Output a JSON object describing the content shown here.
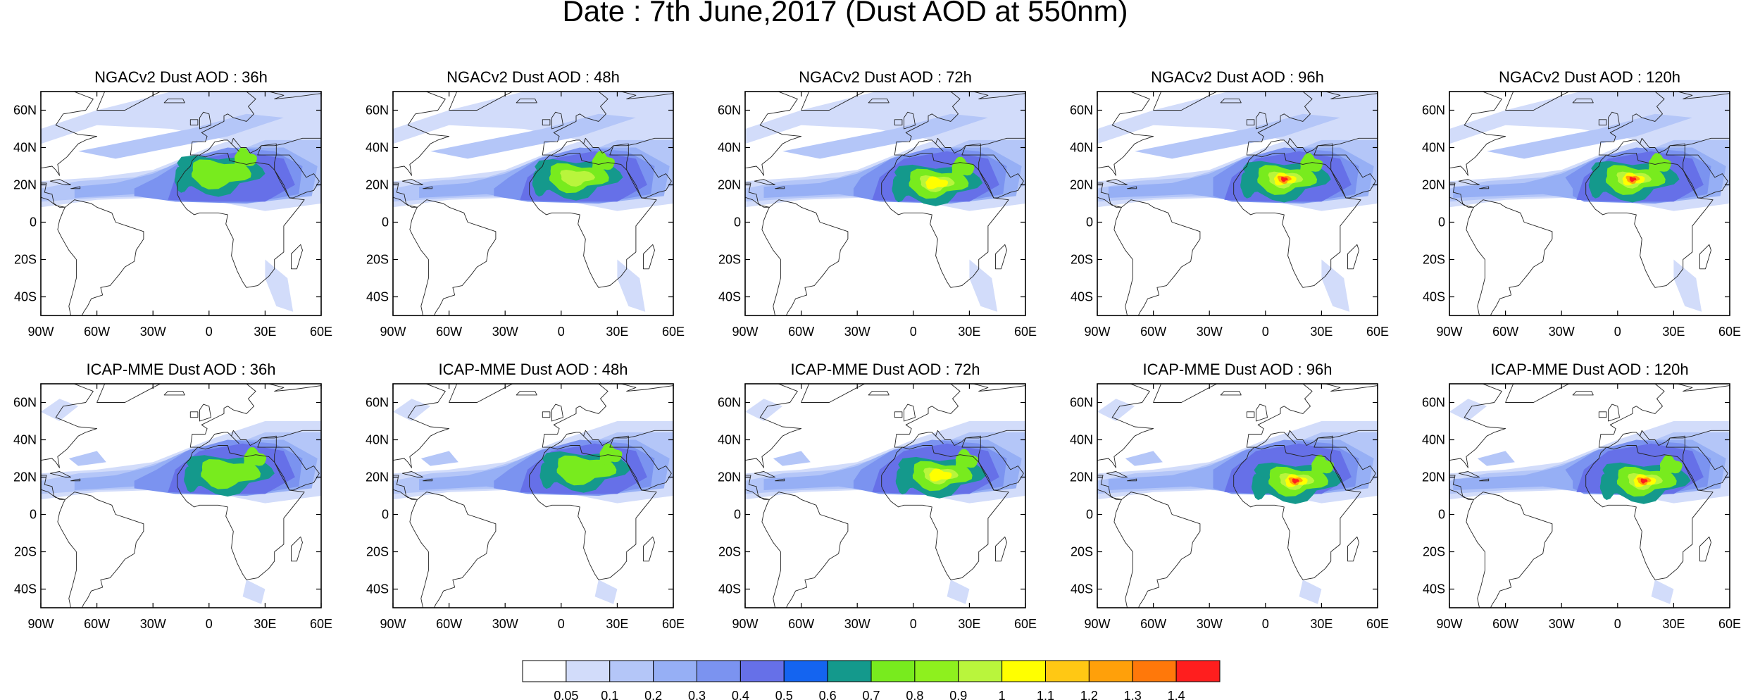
{
  "figure": {
    "title": "Date : 7th June,2017 (Dust AOD at 550nm)"
  },
  "map_axes": {
    "lon_min": -90,
    "lon_max": 60,
    "lat_min": -50,
    "lat_max": 70,
    "lon_ticks": [
      "90W",
      "60W",
      "30W",
      "0",
      "30E",
      "60E"
    ],
    "lat_ticks": [
      "60N",
      "40N",
      "20N",
      "0",
      "20S",
      "40S"
    ]
  },
  "panels": [
    {
      "title": "NGACv2 Dust AOD : 36h",
      "model": "NGACv2",
      "lead": 36
    },
    {
      "title": "NGACv2 Dust AOD : 48h",
      "model": "NGACv2",
      "lead": 48
    },
    {
      "title": "NGACv2 Dust AOD : 72h",
      "model": "NGACv2",
      "lead": 72
    },
    {
      "title": "NGACv2 Dust AOD : 96h",
      "model": "NGACv2",
      "lead": 96
    },
    {
      "title": "NGACv2 Dust AOD : 120h",
      "model": "NGACv2",
      "lead": 120
    },
    {
      "title": "ICAP-MME Dust AOD : 36h",
      "model": "ICAP-MME",
      "lead": 36
    },
    {
      "title": "ICAP-MME Dust AOD : 48h",
      "model": "ICAP-MME",
      "lead": 48
    },
    {
      "title": "ICAP-MME Dust AOD : 72h",
      "model": "ICAP-MME",
      "lead": 72
    },
    {
      "title": "ICAP-MME Dust AOD : 96h",
      "model": "ICAP-MME",
      "lead": 96
    },
    {
      "title": "ICAP-MME Dust AOD : 120h",
      "model": "ICAP-MME",
      "lead": 120
    }
  ],
  "colorbar": {
    "labels": [
      "0.05",
      "0.1",
      "0.2",
      "0.3",
      "0.4",
      "0.5",
      "0.6",
      "0.7",
      "0.8",
      "0.9",
      "1",
      "1.1",
      "1.2",
      "1.3",
      "1.4"
    ],
    "colors": [
      "#ffffff",
      "#d2dcfa",
      "#b4c6f8",
      "#96aff5",
      "#7b93f0",
      "#6670e8",
      "#1464f0",
      "#14998c",
      "#78eb1e",
      "#8ef01e",
      "#b9f53c",
      "#ffff00",
      "#ffc814",
      "#ffa00a",
      "#ff780a",
      "#ff1e1e"
    ]
  }
}
